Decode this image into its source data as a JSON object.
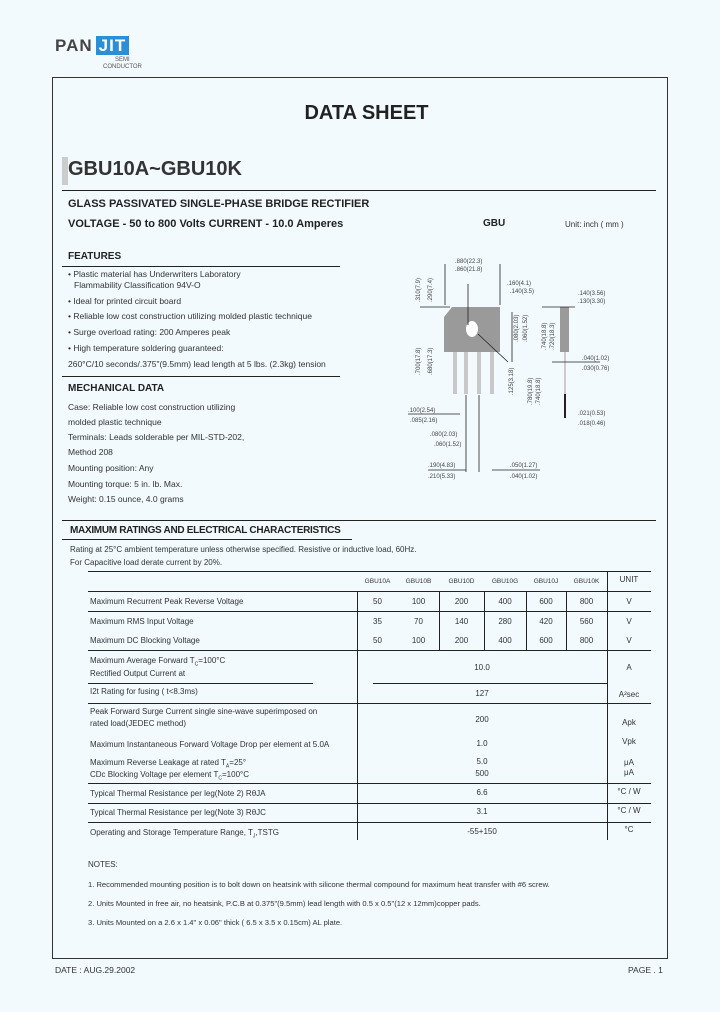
{
  "logo": {
    "brand_left": "PAN",
    "brand_right": "JIT",
    "tag1": "SEMI",
    "tag2": "CONDUCTOR",
    "color_blue": "#2a8fd6"
  },
  "header": {
    "title": "DATA  SHEET",
    "part": "GBU10A~GBU10K"
  },
  "intro": {
    "description": "GLASS PASSIVATED SINGLE-PHASE BRIDGE RECTIFIER",
    "ratings": "VOLTAGE - 50 to 800 Volts  CURRENT - 10.0 Amperes",
    "package": "GBU",
    "unit": "Unit: inch ( mm )"
  },
  "features": {
    "title": "FEATURES",
    "items": [
      "• Plastic material has Underwriters Laboratory",
      "   Flammability Classification 94V-O",
      "• Ideal for printed circuit board",
      "• Reliable low cost construction utilizing molded plastic technique",
      "• Surge overload rating: 200 Amperes peak",
      "• High temperature soldering guaranteed:",
      "  260°C/10 seconds/.375\"(9.5mm) lead length at 5 lbs. (2.3kg) tension"
    ]
  },
  "mechanical": {
    "title": "MECHANICAL DATA",
    "items": [
      "Case: Reliable low cost construction utilizing",
      "molded plastic technique",
      "Terminals: Leads solderable per MIL-STD-202,",
      "Method 208",
      "Mounting position: Any",
      "Mounting torque: 5 in. lb. Max.",
      "Weight: 0.15 ounce, 4.0 grams"
    ]
  },
  "diagram": {
    "dims": [
      ".880(22.3)",
      ".860(21.8)",
      ".160(4.1)",
      ".140(3.5)",
      ".140(3.56)",
      ".130(3.30)",
      ".310(7.9)",
      ".290(7.4)",
      ".080(2.03)",
      ".060(1.52)",
      ".700(17.8)",
      ".680(17.3)",
      ".740(18.8)",
      ".720(18.3)",
      ".040(1.02)",
      ".030(0.76)",
      ".100(2.54)",
      ".085(2.16)",
      ".080(2.03)",
      ".060(1.52)",
      ".190(4.83)",
      ".210(5.33)",
      ".050(1.27)",
      ".040(1.02)",
      ".021(0.53)",
      ".018(0.46)",
      ".125(3.18)",
      ".780(19.8)",
      ".740(18.8)"
    ]
  },
  "ratings_section": {
    "title": "MAXIMUM RATINGS AND ELECTRICAL CHARACTERISTICS",
    "note1": "Rating at 25°C ambient temperature unless otherwise specified. Resistive or inductive load, 60Hz.",
    "note2": "For Capacitive load derate current by 20%."
  },
  "table": {
    "columns": [
      "GBU10A",
      "GBU10B",
      "GBU10D",
      "GBU10G",
      "GBU10J",
      "GBU10K",
      "UNIT"
    ],
    "rows": [
      {
        "label": "Maximum Recurrent Peak Reverse Voltage",
        "values": [
          "50",
          "100",
          "200",
          "400",
          "600",
          "800"
        ],
        "unit": "V"
      },
      {
        "label": "Maximum RMS Input Voltage",
        "values": [
          "35",
          "70",
          "140",
          "280",
          "420",
          "560"
        ],
        "unit": "V"
      },
      {
        "label": "Maximum DC Blocking Voltage",
        "values": [
          "50",
          "100",
          "200",
          "400",
          "600",
          "800"
        ],
        "unit": "V"
      },
      {
        "label": "Maximum Average Forward  T",
        "label2": "Rectified Output Current at",
        "sub": "C",
        "tail": "=100°C",
        "value": "10.0",
        "unit": "A"
      },
      {
        "label": "I2t Rating for fusing ( t<8.3ms)",
        "value": "127",
        "unit": "A²sec"
      },
      {
        "label": "Peak Forward Surge Current single sine-wave superimposed on",
        "label2": "rated load(JEDEC method)",
        "value": "200",
        "unit": "Apk"
      },
      {
        "label": "Maximum Instantaneous Forward Voltage Drop per element at 5.0A",
        "value": "1.0",
        "unit": "Vpk"
      },
      {
        "label": "Maximum Reverse Leakage at rated T",
        "sub": "A",
        "tail": "=25°",
        "label2": "CDc Blocking Voltage per element  T",
        "sub2": "C",
        "tail2": "=100°C",
        "value": "5.0",
        "value2": "500",
        "unit": "μA",
        "unit2": "μA"
      },
      {
        "label": "Typical Thermal Resistance per leg(Note 2) RθJA",
        "value": "6.6",
        "unit": "°C / W"
      },
      {
        "label": "Typical Thermal Resistance per leg(Note 3) RθJC",
        "value": "3.1",
        "unit": "°C / W"
      },
      {
        "label": "Operating and Storage Temperature Range, T",
        "sub": "J",
        "tail": ",TSTG",
        "value": "-55+150",
        "unit": "°C"
      }
    ]
  },
  "notes": {
    "title": "NOTES:",
    "items": [
      "1. Recommended mounting position is to bolt down on heatsink with silicone thermal compound for maximum heat transfer with #6 screw.",
      "2. Units Mounted in free air, no heatsink, P.C.B at 0.375\"(9.5mm) lead length with 0.5 x 0.5\"(12 x 12mm)copper pads.",
      "3. Units Mounted on a 2.6 x 1.4\" x 0.06\" thick ( 6.5 x 3.5 x 0.15cm) AL plate."
    ]
  },
  "footer": {
    "date": "DATE : AUG.29.2002",
    "page": "PAGE . 1"
  }
}
